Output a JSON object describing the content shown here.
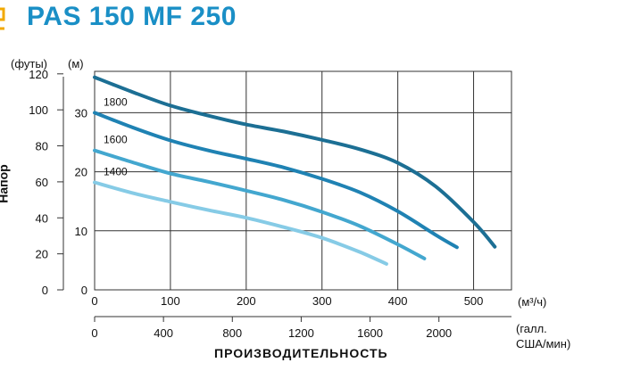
{
  "header": {
    "title": "PAS 150 MF 250"
  },
  "chart_data": {
    "type": "line",
    "ylabel": "Напор",
    "xlabel": "ПРОИЗВОДИТЕЛЬНОСТЬ",
    "y_unit_left": "(футы)",
    "y_unit_right": "(м)",
    "x_unit_primary": "(м³/ч)",
    "x_unit_secondary": "(галл. США/мин)",
    "x_unit_secondary_line1": "(галл.",
    "x_unit_secondary_line2": "США/мин)",
    "xlim": [
      0,
      550
    ],
    "ylim_m": [
      0,
      37
    ],
    "xticks_m3h": [
      "0",
      "100",
      "200",
      "300",
      "400",
      "500"
    ],
    "yticks_m": [
      "0",
      "10",
      "20",
      "30"
    ],
    "yticks_ft": [
      "0",
      "20",
      "40",
      "60",
      "80",
      "100",
      "120"
    ],
    "xticks_gpm": [
      "0",
      "400",
      "800",
      "1200",
      "1600",
      "2000"
    ],
    "grid": true,
    "colors": {
      "title": "#1a8fc6",
      "grid": "#333333"
    },
    "series": [
      {
        "name": "",
        "color": "#1c6f94",
        "x": [
          0,
          50,
          100,
          150,
          200,
          250,
          300,
          350,
          400,
          450,
          500,
          528
        ],
        "y": [
          36,
          33.5,
          31.2,
          29.5,
          28,
          26.8,
          25.4,
          23.8,
          21.5,
          17.5,
          11.5,
          7.3
        ]
      },
      {
        "name": "1800",
        "color": "#1f82b3",
        "x": [
          0,
          50,
          100,
          150,
          200,
          250,
          300,
          350,
          400,
          450,
          478
        ],
        "y": [
          30,
          27.5,
          25.3,
          23.6,
          22.2,
          20.7,
          18.8,
          16.5,
          13.3,
          9.3,
          7.2
        ]
      },
      {
        "name": "1600",
        "color": "#43a7cf",
        "x": [
          0,
          50,
          100,
          150,
          200,
          250,
          300,
          350,
          400,
          435
        ],
        "y": [
          23.6,
          21.6,
          19.7,
          18.3,
          16.8,
          15.2,
          13.2,
          10.8,
          7.7,
          5.3
        ]
      },
      {
        "name": "1400",
        "color": "#86cbe6",
        "x": [
          0,
          50,
          100,
          150,
          200,
          250,
          300,
          350,
          385
        ],
        "y": [
          18.2,
          16.4,
          14.9,
          13.5,
          12.2,
          10.6,
          8.8,
          6.4,
          4.4
        ]
      }
    ]
  }
}
